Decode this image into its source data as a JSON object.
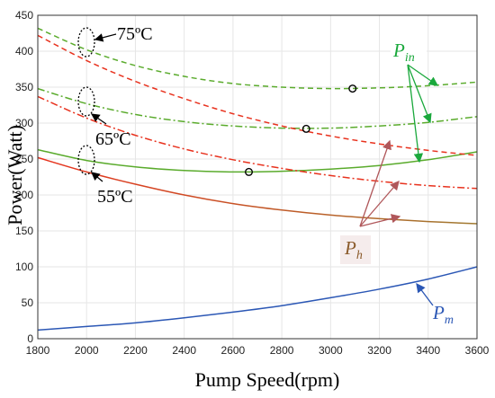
{
  "chart_data": {
    "type": "line",
    "xlabel": "Pump Speed(rpm)",
    "ylabel": "Power(Watt)",
    "xlim": [
      1800,
      3600
    ],
    "ylim": [
      0,
      450
    ],
    "xticks": [
      1800,
      2000,
      2200,
      2400,
      2600,
      2800,
      3000,
      3200,
      3400,
      3600
    ],
    "yticks": [
      0,
      50,
      100,
      150,
      200,
      250,
      300,
      350,
      400,
      450
    ],
    "grid": true,
    "x": [
      1800,
      2000,
      2200,
      2400,
      2600,
      2800,
      3000,
      3200,
      3400,
      3600
    ],
    "series": [
      {
        "group": "in",
        "temp": "75",
        "color": "#5aab2c",
        "dash": "6,4",
        "values": [
          432,
          402,
          380,
          365,
          355,
          350,
          348,
          349,
          352,
          357
        ]
      },
      {
        "group": "in",
        "temp": "65",
        "color": "#5aab2c",
        "dash": "8,3,2,3",
        "values": [
          348,
          327,
          312,
          302,
          296,
          293,
          293,
          296,
          301,
          309
        ]
      },
      {
        "group": "in",
        "temp": "55",
        "color": "#5aab2c",
        "dash": "",
        "values": [
          263,
          248,
          239,
          234,
          232,
          233,
          236,
          241,
          249,
          260
        ]
      },
      {
        "group": "h",
        "temp": "75",
        "color": "#e8321e",
        "dash": "6,4",
        "values": [
          422,
          387,
          358,
          334,
          313,
          296,
          282,
          271,
          262,
          255
        ]
      },
      {
        "group": "h",
        "temp": "65",
        "color": "#e8321e",
        "dash": "8,3,2,3",
        "values": [
          337,
          307,
          283,
          264,
          249,
          237,
          227,
          219,
          213,
          209
        ]
      },
      {
        "group": "h",
        "temp": "55",
        "color": "#e8321e",
        "color_end": "#a07a30",
        "dash": "",
        "values": [
          252,
          232,
          215,
          200,
          188,
          179,
          172,
          167,
          163,
          160
        ]
      },
      {
        "group": "m",
        "temp": "",
        "color": "#2b57b5",
        "dash": "",
        "values": [
          12,
          17,
          22,
          29,
          37,
          46,
          57,
          69,
          83,
          100
        ]
      }
    ],
    "markers": [
      {
        "x": 3090,
        "y": 348
      },
      {
        "x": 2900,
        "y": 292
      },
      {
        "x": 2665,
        "y": 232
      }
    ],
    "annotations": {
      "temp_75": "75ºC",
      "temp_65": "65ºC",
      "temp_55": "55ºC",
      "p_in": {
        "base": "P",
        "sub": "in",
        "color": "#1aa83c"
      },
      "p_h": {
        "base": "P",
        "sub": "h",
        "color": "#8a5a2a"
      },
      "p_m": {
        "base": "P",
        "sub": "m",
        "color": "#2b57b5"
      }
    }
  }
}
